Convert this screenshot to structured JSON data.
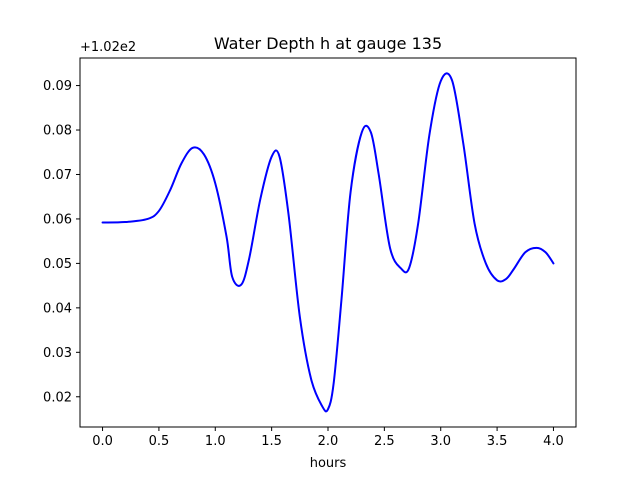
{
  "chart_data": {
    "type": "line",
    "title": "Water Depth h at gauge 135",
    "xlabel": "hours",
    "ylabel": "",
    "y_offset_text": "+1.02e2",
    "xlim": [
      -0.2,
      4.2
    ],
    "ylim": [
      0.0132,
      0.0962
    ],
    "x_ticks": [
      0.0,
      0.5,
      1.0,
      1.5,
      2.0,
      2.5,
      3.0,
      3.5,
      4.0
    ],
    "x_tick_labels": [
      "0.0",
      "0.5",
      "1.0",
      "1.5",
      "2.0",
      "2.5",
      "3.0",
      "3.5",
      "4.0"
    ],
    "y_ticks": [
      0.02,
      0.03,
      0.04,
      0.05,
      0.06,
      0.07,
      0.08,
      0.09
    ],
    "y_tick_labels": [
      "0.02",
      "0.03",
      "0.04",
      "0.05",
      "0.06",
      "0.07",
      "0.08",
      "0.09"
    ],
    "grid": false,
    "series": [
      {
        "color": "#0000ff",
        "x": [
          0.0,
          0.2,
          0.4,
          0.5,
          0.6,
          0.7,
          0.8,
          0.9,
          1.0,
          1.1,
          1.15,
          1.23,
          1.3,
          1.4,
          1.5,
          1.57,
          1.65,
          1.75,
          1.85,
          1.95,
          2.0,
          2.05,
          2.12,
          2.2,
          2.3,
          2.38,
          2.45,
          2.55,
          2.65,
          2.72,
          2.8,
          2.9,
          3.0,
          3.1,
          3.2,
          3.3,
          3.4,
          3.5,
          3.58,
          3.65,
          3.75,
          3.85,
          3.93,
          4.0
        ],
        "values": [
          0.0592,
          0.0593,
          0.06,
          0.0618,
          0.0665,
          0.0725,
          0.076,
          0.0745,
          0.068,
          0.056,
          0.047,
          0.0452,
          0.051,
          0.0645,
          0.074,
          0.074,
          0.061,
          0.038,
          0.024,
          0.0178,
          0.0172,
          0.023,
          0.042,
          0.066,
          0.0795,
          0.0795,
          0.07,
          0.0535,
          0.0488,
          0.049,
          0.059,
          0.079,
          0.091,
          0.0912,
          0.077,
          0.059,
          0.05,
          0.0462,
          0.0465,
          0.0488,
          0.0525,
          0.0535,
          0.0525,
          0.05
        ]
      }
    ]
  }
}
